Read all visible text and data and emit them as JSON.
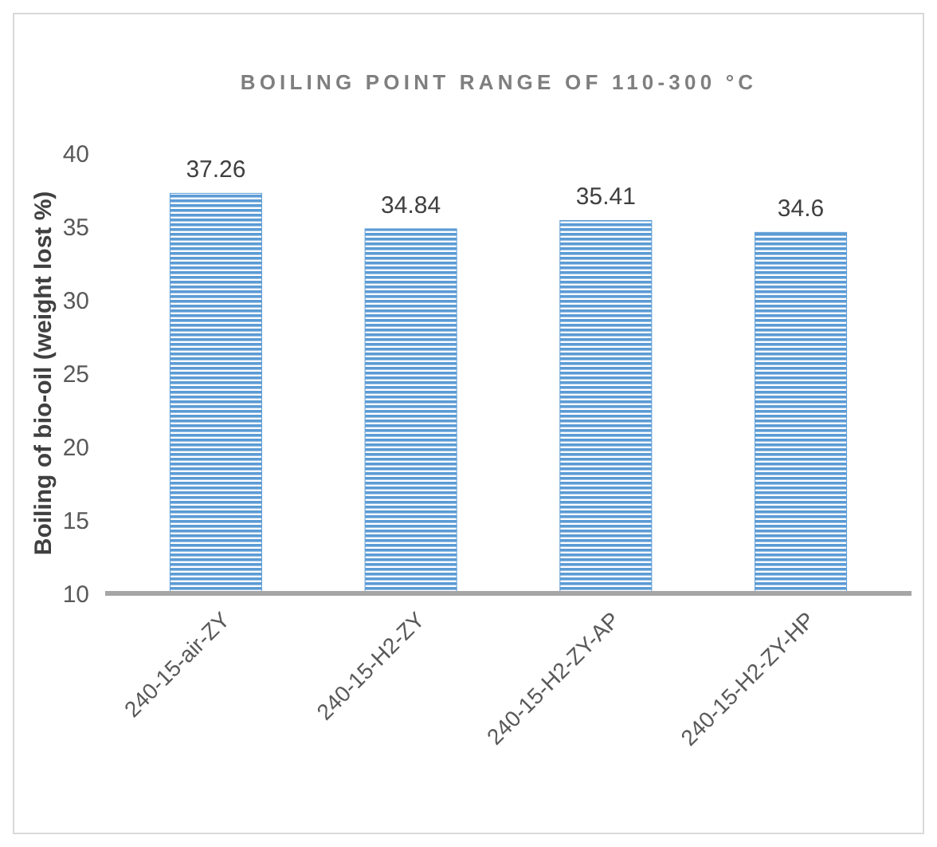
{
  "chart_data": {
    "type": "bar",
    "title": "BOILING POINT RANGE OF 110-300 °C",
    "ylabel": "Boiling of bio-oil (weight lost %)",
    "categories": [
      "240-15-air-ZY",
      "240-15-H2-ZY",
      "240-15-H2-ZY-AP",
      "240-15-H2-ZY-HP"
    ],
    "values": [
      37.26,
      34.84,
      35.41,
      34.6
    ],
    "color": "#5b9bd5",
    "ylim": [
      10,
      40
    ],
    "yticks": [
      10,
      15,
      20,
      25,
      30,
      35,
      40
    ],
    "grid": false,
    "data_labels": true
  }
}
